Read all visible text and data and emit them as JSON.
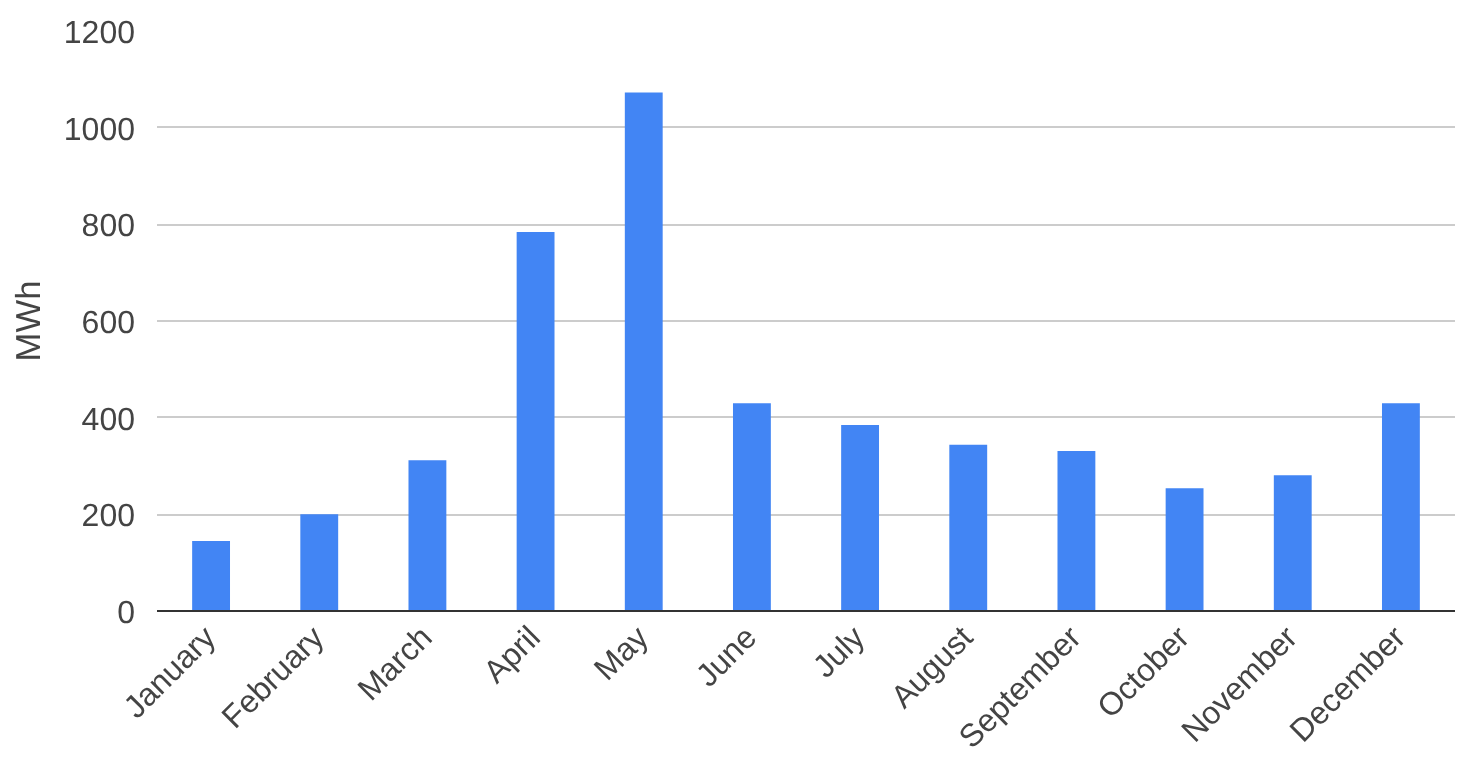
{
  "chart_data": {
    "type": "bar",
    "ylabel": "MWh",
    "categories": [
      "January",
      "February",
      "March",
      "April",
      "May",
      "June",
      "July",
      "August",
      "September",
      "October",
      "November",
      "December"
    ],
    "values": [
      145,
      200,
      312,
      784,
      1073,
      430,
      385,
      344,
      331,
      254,
      281,
      430
    ],
    "color": "#4285f4",
    "ylim": [
      0,
      1200
    ],
    "yticks": [
      0,
      200,
      400,
      600,
      800,
      1000,
      1200
    ],
    "grid": "y"
  }
}
